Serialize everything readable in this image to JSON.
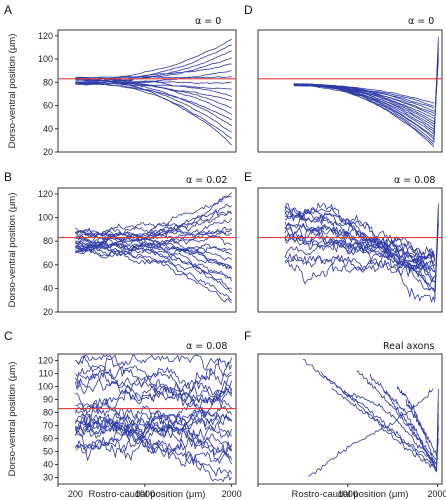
{
  "chart_data": [
    {
      "panel": "A",
      "type": "line",
      "annotation": "α = 0",
      "ylabel": "Dorso-ventral position (μm)",
      "xlabel": "",
      "ylim": [
        20,
        125
      ],
      "yticks": [
        20,
        40,
        60,
        80,
        100,
        120
      ],
      "xlim": [
        0,
        2050
      ],
      "xticks": [],
      "xticklabels": [],
      "reference_line_y": 83,
      "reference_line_color": "#e0403c",
      "series_color": "#2e3aa6",
      "x_range": [
        200,
        2000
      ],
      "n_traces": 18,
      "start_y": [
        78,
        85
      ],
      "end_y": [
        26,
        117
      ],
      "noise": 0.3,
      "jitter": 0.4
    },
    {
      "panel": "B",
      "type": "line",
      "annotation": "α = 0.02",
      "ylabel": "Dorso-ventral position (μm)",
      "xlabel": "",
      "ylim": [
        20,
        125
      ],
      "yticks": [
        20,
        40,
        60,
        80,
        100,
        120
      ],
      "xlim": [
        0,
        2050
      ],
      "xticks": [],
      "xticklabels": [],
      "reference_line_y": 83,
      "reference_line_color": "#e0403c",
      "series_color": "#2e3aa6",
      "x_range": [
        200,
        2000
      ],
      "n_traces": 22,
      "start_y": [
        70,
        92
      ],
      "end_y": [
        28,
        120
      ],
      "noise": 1.6,
      "jitter": 3.5
    },
    {
      "panel": "C",
      "type": "line",
      "annotation": "α = 0.08",
      "ylabel": "Dorso-ventral position (μm)",
      "xlabel": "Rostro-caudal position (μm)",
      "ylim": [
        25,
        125
      ],
      "yticks": [
        30,
        40,
        50,
        60,
        70,
        80,
        90,
        100,
        110,
        120
      ],
      "xlim": [
        0,
        2050
      ],
      "xticks": [
        0,
        1000,
        2000
      ],
      "xticklabels": [
        "",
        "1000",
        "2000"
      ],
      "extra_tick_labels": [
        {
          "x": 200,
          "label": "200"
        }
      ],
      "reference_line_y": 83,
      "reference_line_color": "#e0403c",
      "series_color": "#2e3aa6",
      "x_range": [
        200,
        2000
      ],
      "n_traces": 22,
      "start_y": [
        50,
        120
      ],
      "end_y": [
        30,
        122
      ],
      "noise": 3.5,
      "jitter": 8
    },
    {
      "panel": "D",
      "type": "line",
      "annotation": "α = 0",
      "ylabel": "",
      "xlabel": "",
      "ylim": [
        20,
        125
      ],
      "yticks": [],
      "xlim": [
        0,
        2050
      ],
      "xticks": [],
      "xticklabels": [],
      "reference_line_y": 83,
      "reference_line_color": "#e0403c",
      "series_color": "#2e3aa6",
      "x_range": [
        400,
        1960
      ],
      "n_traces": 18,
      "start_y": [
        77,
        79
      ],
      "end_y": [
        24,
        62
      ],
      "noise": 0.2,
      "jitter": 0.3,
      "tail": {
        "x": [
          1960,
          2010
        ],
        "end_y": [
          100,
          119
        ]
      }
    },
    {
      "panel": "E",
      "type": "line",
      "annotation": "α = 0.08",
      "ylabel": "",
      "xlabel": "",
      "ylim": [
        20,
        125
      ],
      "yticks": [],
      "xlim": [
        0,
        2050
      ],
      "xticks": [],
      "xticklabels": [],
      "reference_line_y": 83,
      "reference_line_color": "#e0403c",
      "series_color": "#2e3aa6",
      "x_range": [
        300,
        1970
      ],
      "n_traces": 18,
      "start_y": [
        60,
        112
      ],
      "end_y": [
        30,
        75
      ],
      "noise": 3.2,
      "jitter": 7,
      "tail": {
        "x": [
          1970,
          2010
        ],
        "end_y": [
          95,
          112
        ]
      }
    },
    {
      "panel": "F",
      "type": "line",
      "annotation": "Real axons",
      "ylabel": "",
      "xlabel": "Rostro-caudal position (μm)",
      "ylim": [
        25,
        125
      ],
      "yticks": [],
      "xlim": [
        0,
        2050
      ],
      "xticks": [
        0,
        1000,
        2000
      ],
      "xticklabels": [
        "",
        "1000",
        "2000"
      ],
      "series_color": "#2e3aa6",
      "axons": [
        {
          "x0": 500,
          "x1": 1980,
          "y": [
            120,
            105,
            88,
            70,
            55,
            42
          ]
        },
        {
          "x0": 700,
          "x1": 1990,
          "y": [
            110,
            96,
            83,
            68,
            52,
            38
          ]
        },
        {
          "x0": 820,
          "x1": 1985,
          "y": [
            98,
            86,
            75,
            60,
            48,
            36
          ]
        },
        {
          "x0": 950,
          "x1": 1990,
          "y": [
            94,
            92,
            85,
            72,
            55,
            40
          ]
        },
        {
          "x0": 1100,
          "x1": 1990,
          "y": [
            112,
            100,
            88,
            73,
            57,
            44
          ]
        },
        {
          "x0": 1250,
          "x1": 1985,
          "y": [
            108,
            98,
            84,
            70,
            54,
            37
          ]
        },
        {
          "x0": 1400,
          "x1": 1995,
          "y": [
            96,
            90,
            80,
            66,
            50,
            35
          ]
        },
        {
          "x0": 1550,
          "x1": 1990,
          "y": [
            100,
            93,
            84,
            70,
            55,
            33
          ]
        },
        {
          "x0": 560,
          "x1": 1950,
          "y": [
            30,
            45,
            58,
            68,
            80,
            98
          ]
        },
        {
          "x0": 1650,
          "x1": 2005,
          "y": [
            88,
            80,
            72,
            64,
            55,
            45
          ]
        }
      ],
      "tail": {
        "x": [
          1990,
          2010
        ],
        "end_y": [
          60,
          98
        ]
      }
    }
  ]
}
